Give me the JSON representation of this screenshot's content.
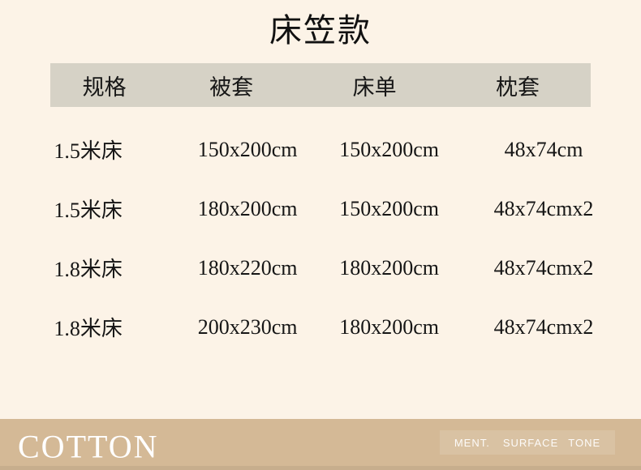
{
  "page": {
    "title": "床笠款"
  },
  "colors": {
    "background": "#fcf3e7",
    "header_band": "#d6d2c6",
    "footer_band": "#d4b996",
    "text": "#161616",
    "footer_text": "#ffffff"
  },
  "table": {
    "columns": [
      "规格",
      "被套",
      "床单",
      "枕套"
    ],
    "rows": [
      [
        "1.5米床",
        "150x200cm",
        "150x200cm",
        "48x74cm"
      ],
      [
        "1.5米床",
        "180x200cm",
        "150x200cm",
        "48x74cmx2"
      ],
      [
        "1.8米床",
        "180x220cm",
        "180x200cm",
        "48x74cmx2"
      ],
      [
        "1.8米床",
        "200x230cm",
        "180x200cm",
        "48x74cmx2"
      ]
    ]
  },
  "footer": {
    "brand": "COTTON",
    "tags": [
      "MENT.",
      "SURFACE",
      "TONE"
    ]
  }
}
